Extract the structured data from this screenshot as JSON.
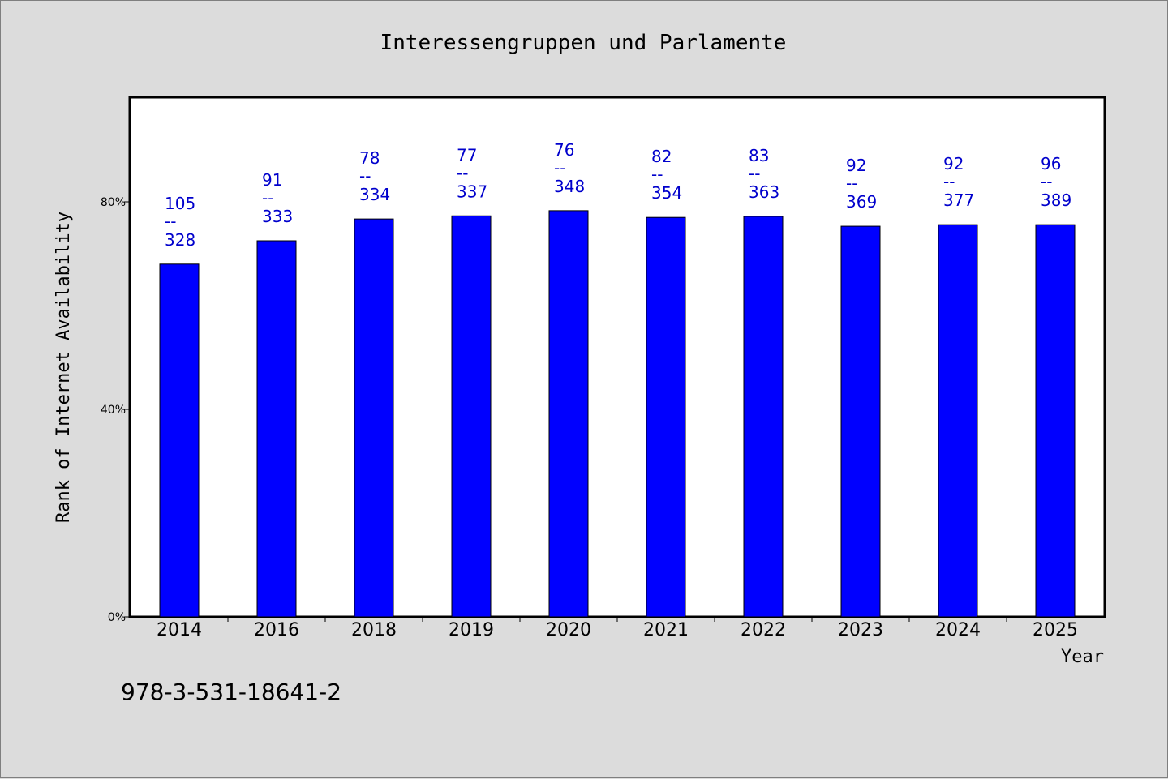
{
  "chart_data": {
    "type": "bar",
    "title": "Interessengruppen und Parlamente",
    "xlabel": "Year",
    "ylabel": "Rank of Internet Availability",
    "categories": [
      "2014",
      "2016",
      "2018",
      "2019",
      "2020",
      "2021",
      "2022",
      "2023",
      "2024",
      "2025"
    ],
    "values": [
      68,
      72.5,
      76.7,
      77.3,
      78.3,
      77,
      77.2,
      75.3,
      75.6,
      75.6
    ],
    "numerators": [
      "105",
      "91",
      "78",
      "77",
      "76",
      "82",
      "83",
      "92",
      "92",
      "96"
    ],
    "denominators": [
      "328",
      "333",
      "334",
      "337",
      "348",
      "354",
      "363",
      "369",
      "377",
      "389"
    ],
    "label_separator": "--",
    "ylim": [
      0,
      100
    ],
    "yticks": [
      0,
      40,
      80
    ],
    "ytick_labels": [
      "0%",
      "40%",
      "80%"
    ],
    "grid": false,
    "bar_color": "#0000ff",
    "label_color": "#0000cc",
    "plot_background": "#ffffff",
    "background": "#dcdcdc"
  },
  "footnote": "978-3-531-18641-2"
}
